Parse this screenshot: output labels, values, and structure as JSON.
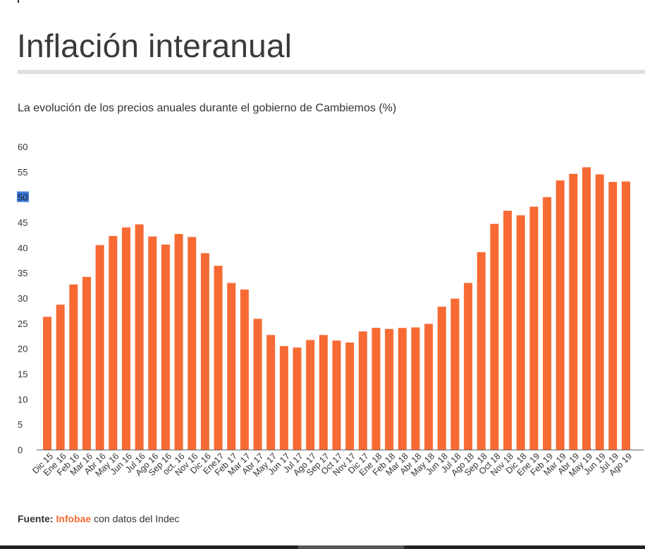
{
  "header": {
    "title": "Inflación interanual",
    "subtitle": "La evolución de los precios anuales durante el gobierno de Cambiemos (%)"
  },
  "footer": {
    "prefix": "Fuente:",
    "brand": "Infobae",
    "suffix": "con datos del Indec"
  },
  "colors": {
    "bar": "#f76a34",
    "brand": "#f76a34",
    "highlight": "#3d7bd9"
  },
  "chart_data": {
    "type": "bar",
    "title": "Inflación interanual",
    "subtitle": "La evolución de los precios anuales durante el gobierno de Cambiemos (%)",
    "xlabel": "",
    "ylabel": "",
    "ylim": [
      0,
      60
    ],
    "yticks": [
      0,
      5,
      10,
      15,
      20,
      25,
      30,
      35,
      40,
      45,
      50,
      55,
      60
    ],
    "highlighted_ytick": 50,
    "grid": false,
    "legend": "none",
    "categories": [
      "Dic 15",
      "Ene 16",
      "Feb 16",
      "Mar 16",
      "Abr 16",
      "May 16",
      "Jun 16",
      "Jul 16",
      "Ago 16",
      "Sep 16",
      "oct. 16",
      "Nov 16",
      "Dic 16",
      "Ene17",
      "Feb 17",
      "Mar 17",
      "Abr 17",
      "May 17",
      "Jun 17",
      "Jul 17",
      "Ago 17",
      "Sep 17",
      "Oct 17",
      "Nov 17",
      "Dic 17",
      "Ene 18",
      "Feb 18",
      "Mar 18",
      "Abr 18",
      "May 18",
      "Jun 18",
      "Jul 18",
      "Ago 18",
      "Sep 18",
      "Oct 18",
      "Nov 18",
      "Dic 18",
      "Ene 19",
      "Feb 19",
      "Mar 19",
      "Abr 19",
      "May 19",
      "Jun 19",
      "Jul 19",
      "Ago 19"
    ],
    "values": [
      26.3,
      28.7,
      32.7,
      34.2,
      40.5,
      42.3,
      44.0,
      44.6,
      42.2,
      40.6,
      42.7,
      42.1,
      38.9,
      36.4,
      33.0,
      31.7,
      25.9,
      22.7,
      20.5,
      20.2,
      21.7,
      22.7,
      21.6,
      21.2,
      23.4,
      24.1,
      23.9,
      24.1,
      24.2,
      24.9,
      28.3,
      29.9,
      33.0,
      39.1,
      44.7,
      47.3,
      46.4,
      48.1,
      50.0,
      53.3,
      54.6,
      55.9,
      54.5,
      53.0,
      53.1
    ]
  }
}
